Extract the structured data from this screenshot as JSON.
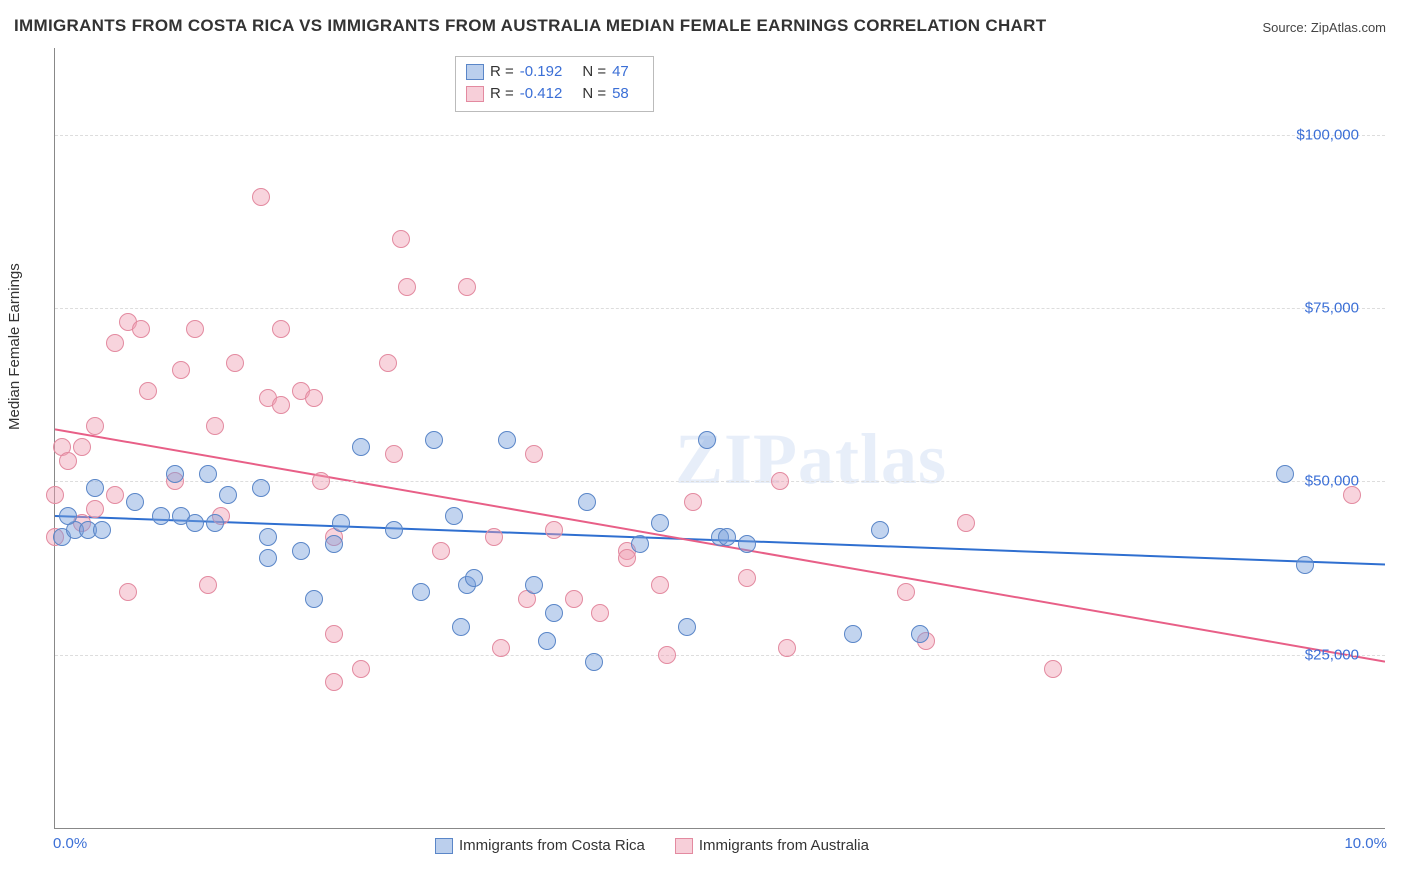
{
  "title": "IMMIGRANTS FROM COSTA RICA VS IMMIGRANTS FROM AUSTRALIA MEDIAN FEMALE EARNINGS CORRELATION CHART",
  "source_label": "Source: ZipAtlas.com",
  "watermark": "ZIPatlas",
  "chart": {
    "type": "scatter",
    "background_color": "#ffffff",
    "grid_color": "#dddddd",
    "axis_color": "#888888",
    "ylabel": "Median Female Earnings",
    "ylabel_fontsize": 15,
    "tick_label_color": "#3b6fd6",
    "xlim": [
      0.0,
      10.0
    ],
    "ylim": [
      0,
      112500
    ],
    "y_ticks": [
      25000,
      50000,
      75000,
      100000
    ],
    "y_tick_labels": [
      "$25,000",
      "$50,000",
      "$75,000",
      "$100,000"
    ],
    "x_ticks": [
      0.0,
      10.0
    ],
    "x_tick_labels": [
      "0.0%",
      "10.0%"
    ],
    "marker_radius": 8,
    "marker_opacity": 0.45,
    "line_width": 2,
    "trend_lines": {
      "blue": {
        "color": "#2f6fd0",
        "y_at_x0": 45000,
        "y_at_x10": 38000
      },
      "pink": {
        "color": "#e85f87",
        "y_at_x0": 57500,
        "y_at_x10": 24000
      }
    },
    "legend_top": {
      "rows": [
        {
          "swatch": "blue",
          "r_label": "R =",
          "r_value": "-0.192",
          "n_label": "N =",
          "n_value": "47"
        },
        {
          "swatch": "pink",
          "r_label": "R =",
          "r_value": "-0.412",
          "n_label": "N =",
          "n_value": "58"
        }
      ]
    },
    "legend_bottom": {
      "items": [
        {
          "swatch": "blue",
          "label": "Immigrants from Costa Rica"
        },
        {
          "swatch": "pink",
          "label": "Immigrants from Australia"
        }
      ]
    },
    "series_blue_color": "#7aa0dc",
    "series_pink_color": "#f0a0b4",
    "series_blue": [
      [
        0.05,
        42000
      ],
      [
        0.15,
        43000
      ],
      [
        0.1,
        45000
      ],
      [
        0.25,
        43000
      ],
      [
        0.35,
        43000
      ],
      [
        0.3,
        49000
      ],
      [
        0.6,
        47000
      ],
      [
        0.8,
        45000
      ],
      [
        0.95,
        45000
      ],
      [
        1.05,
        44000
      ],
      [
        0.9,
        51000
      ],
      [
        1.15,
        51000
      ],
      [
        1.2,
        44000
      ],
      [
        1.3,
        48000
      ],
      [
        1.55,
        49000
      ],
      [
        1.6,
        42000
      ],
      [
        1.6,
        39000
      ],
      [
        1.85,
        40000
      ],
      [
        1.95,
        33000
      ],
      [
        2.1,
        41000
      ],
      [
        2.15,
        44000
      ],
      [
        2.3,
        55000
      ],
      [
        2.55,
        43000
      ],
      [
        2.75,
        34000
      ],
      [
        2.85,
        56000
      ],
      [
        3.0,
        45000
      ],
      [
        3.05,
        29000
      ],
      [
        3.1,
        35000
      ],
      [
        3.15,
        36000
      ],
      [
        3.4,
        56000
      ],
      [
        3.6,
        35000
      ],
      [
        3.75,
        31000
      ],
      [
        4.05,
        24000
      ],
      [
        4.4,
        41000
      ],
      [
        4.55,
        44000
      ],
      [
        4.75,
        29000
      ],
      [
        4.9,
        56000
      ],
      [
        5.0,
        42000
      ],
      [
        5.05,
        42000
      ],
      [
        5.2,
        41000
      ],
      [
        6.0,
        28000
      ],
      [
        6.2,
        43000
      ],
      [
        6.5,
        28000
      ],
      [
        9.25,
        51000
      ],
      [
        9.4,
        38000
      ],
      [
        4.0,
        47000
      ],
      [
        3.7,
        27000
      ]
    ],
    "series_pink": [
      [
        0.0,
        48000
      ],
      [
        0.0,
        42000
      ],
      [
        0.05,
        55000
      ],
      [
        0.1,
        53000
      ],
      [
        0.2,
        55000
      ],
      [
        0.2,
        44000
      ],
      [
        0.3,
        46000
      ],
      [
        0.3,
        58000
      ],
      [
        0.45,
        70000
      ],
      [
        0.55,
        73000
      ],
      [
        0.55,
        34000
      ],
      [
        0.65,
        72000
      ],
      [
        0.7,
        63000
      ],
      [
        0.9,
        50000
      ],
      [
        1.05,
        72000
      ],
      [
        1.15,
        35000
      ],
      [
        1.2,
        58000
      ],
      [
        1.25,
        45000
      ],
      [
        1.55,
        91000
      ],
      [
        1.6,
        62000
      ],
      [
        1.7,
        72000
      ],
      [
        1.7,
        61000
      ],
      [
        1.85,
        63000
      ],
      [
        1.95,
        62000
      ],
      [
        2.0,
        50000
      ],
      [
        2.1,
        42000
      ],
      [
        2.1,
        28000
      ],
      [
        2.1,
        21000
      ],
      [
        2.5,
        67000
      ],
      [
        2.55,
        54000
      ],
      [
        2.6,
        85000
      ],
      [
        2.65,
        78000
      ],
      [
        2.9,
        40000
      ],
      [
        3.1,
        78000
      ],
      [
        3.3,
        42000
      ],
      [
        3.35,
        26000
      ],
      [
        3.55,
        33000
      ],
      [
        3.6,
        54000
      ],
      [
        3.75,
        43000
      ],
      [
        3.9,
        33000
      ],
      [
        4.1,
        31000
      ],
      [
        4.3,
        40000
      ],
      [
        4.55,
        35000
      ],
      [
        4.6,
        25000
      ],
      [
        4.8,
        47000
      ],
      [
        5.2,
        36000
      ],
      [
        5.45,
        50000
      ],
      [
        5.5,
        26000
      ],
      [
        6.4,
        34000
      ],
      [
        6.55,
        27000
      ],
      [
        6.85,
        44000
      ],
      [
        7.5,
        23000
      ],
      [
        2.3,
        23000
      ],
      [
        0.95,
        66000
      ],
      [
        1.35,
        67000
      ],
      [
        0.45,
        48000
      ],
      [
        4.3,
        39000
      ],
      [
        9.75,
        48000
      ]
    ]
  }
}
